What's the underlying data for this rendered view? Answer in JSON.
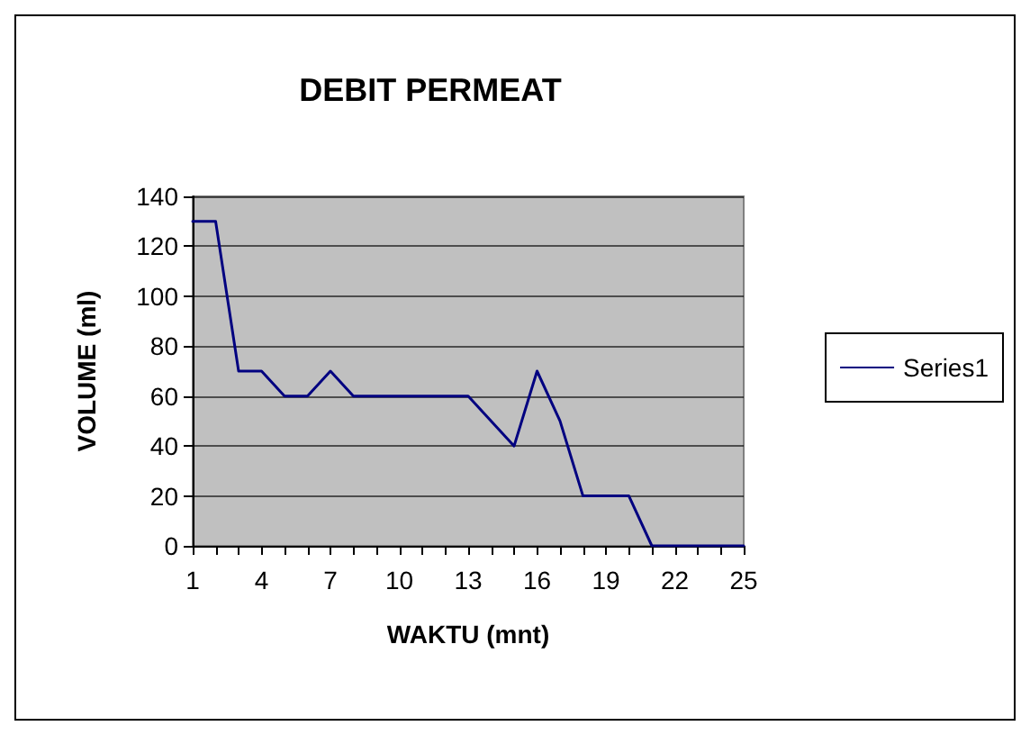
{
  "chart_data": {
    "type": "line",
    "title": "DEBIT PERMEAT",
    "xlabel": "WAKTU (mnt)",
    "ylabel": "VOLUME (ml)",
    "categories": [
      "1",
      null,
      null,
      "4",
      null,
      null,
      "7",
      null,
      null,
      "10",
      null,
      null,
      "13",
      null,
      null,
      "16",
      null,
      null,
      "19",
      null,
      null,
      "22",
      null,
      null,
      "25"
    ],
    "series": [
      {
        "name": "Series1",
        "color": "#000080",
        "values": [
          130,
          130,
          70,
          70,
          60,
          60,
          70,
          60,
          60,
          60,
          60,
          60,
          60,
          50,
          40,
          70,
          50,
          20,
          20,
          20,
          0,
          0,
          0,
          0,
          0
        ]
      }
    ],
    "ylim": [
      0,
      140
    ],
    "yticks": [
      0,
      20,
      40,
      60,
      80,
      100,
      120,
      140
    ],
    "grid": "y",
    "legend": "right",
    "marker": "none",
    "line_style": "solid"
  }
}
